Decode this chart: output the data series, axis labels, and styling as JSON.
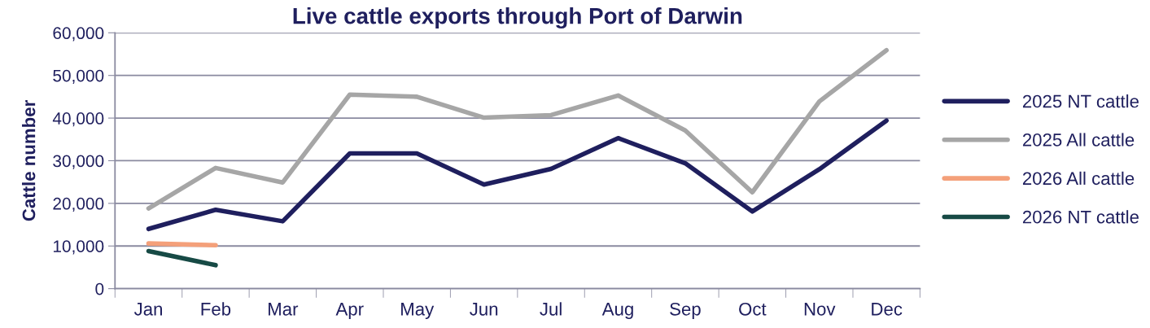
{
  "chart_data": {
    "type": "line",
    "title": "Live cattle exports through Port of Darwin",
    "ylabel": "Cattle number",
    "categories": [
      "Jan",
      "Feb",
      "Mar",
      "Apr",
      "May",
      "Jun",
      "Jul",
      "Aug",
      "Sep",
      "Oct",
      "Nov",
      "Dec"
    ],
    "series": [
      {
        "name": "2025 NT cattle",
        "color": "#1f1f5e",
        "values": [
          14000,
          18500,
          15800,
          31700,
          31700,
          24400,
          28100,
          35300,
          29400,
          18100,
          28000,
          39400
        ]
      },
      {
        "name": "2025 All cattle",
        "color": "#a6a6a6",
        "values": [
          18800,
          28300,
          24900,
          45500,
          45000,
          40100,
          40700,
          45300,
          37100,
          22600,
          43900,
          55900
        ]
      },
      {
        "name": "2026 All cattle",
        "color": "#f4a07a",
        "values": [
          10600,
          10200,
          null,
          null,
          null,
          null,
          null,
          null,
          null,
          null,
          null,
          null
        ]
      },
      {
        "name": "2026 NT cattle",
        "color": "#174a45",
        "values": [
          8800,
          5500,
          null,
          null,
          null,
          null,
          null,
          null,
          null,
          null,
          null,
          null
        ]
      }
    ],
    "ylim": [
      0,
      60000
    ],
    "yticks": [
      {
        "value": 0,
        "label": "0"
      },
      {
        "value": 10000,
        "label": "10,000"
      },
      {
        "value": 20000,
        "label": "20,000"
      },
      {
        "value": 30000,
        "label": "30,000"
      },
      {
        "value": 40000,
        "label": "40,000"
      },
      {
        "value": 50000,
        "label": "50,000"
      },
      {
        "value": 60000,
        "label": "60,000"
      }
    ],
    "grid": "y",
    "legend": "right",
    "marker": "none",
    "line_style": "solid"
  }
}
